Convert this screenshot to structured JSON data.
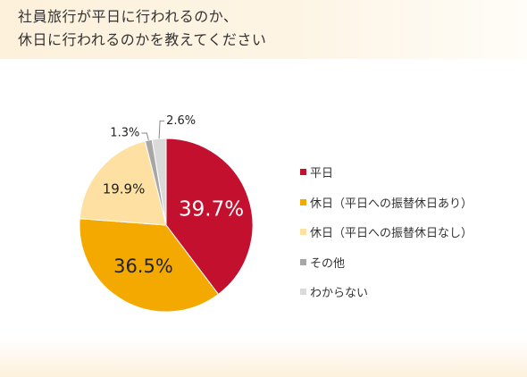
{
  "title": {
    "line1": "社員旅行が平日に行われるのか、",
    "line2": "休日に行われるのかを教えてください"
  },
  "colors": {
    "weekday": "#c2102e",
    "holiday_with_substitute": "#f3a900",
    "holiday_without_substitute": "#fde0a2",
    "other": "#a7a7a7",
    "unknown": "#dadada"
  },
  "chart_data": {
    "type": "pie",
    "title": "社員旅行が平日に行われるのか、休日に行われるのかを教えてください",
    "categories": [
      "平日",
      "休日（平日への振替休日あり）",
      "休日（平日への振替休日なし）",
      "その他",
      "わからない"
    ],
    "values": [
      39.7,
      36.5,
      19.9,
      1.3,
      2.6
    ],
    "labels": [
      "39.7%",
      "36.5%",
      "19.9%",
      "1.3%",
      "2.6%"
    ],
    "start": "12 o'clock",
    "direction": "clockwise",
    "legend_position": "right"
  },
  "legend": [
    {
      "label": "平日",
      "color": "#c2102e"
    },
    {
      "label": "休日（平日への振替休日あり）",
      "color": "#f3a900"
    },
    {
      "label": "休日（平日への振替休日なし）",
      "color": "#fde0a2"
    },
    {
      "label": "その他",
      "color": "#a7a7a7"
    },
    {
      "label": "わからない",
      "color": "#dadada"
    }
  ]
}
